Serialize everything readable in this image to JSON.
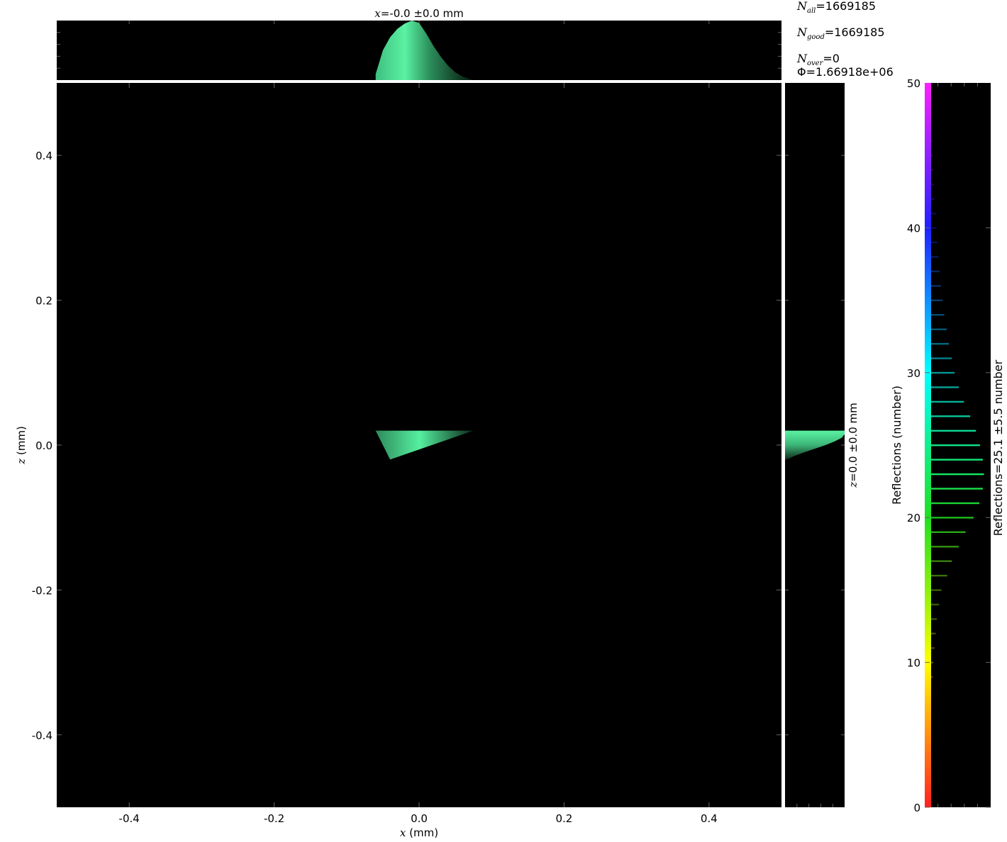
{
  "chart_data": {
    "type": "heatmap",
    "main": {
      "xlabel_var": "x",
      "xlabel_unit": "(mm)",
      "ylabel_var": "z",
      "ylabel_unit": "(mm)",
      "xlim": [
        -0.5,
        0.5
      ],
      "ylim": [
        -0.5,
        0.5
      ],
      "xticks": [
        -0.4,
        -0.2,
        0.0,
        0.2,
        0.4
      ],
      "yticks": [
        -0.4,
        -0.2,
        0.0,
        0.2,
        0.4
      ],
      "xtick_labels": [
        "-0.4",
        "-0.2",
        "0.0",
        "0.2",
        "0.4"
      ],
      "ytick_labels": [
        "-0.4",
        "-0.2",
        "0.0",
        "0.2",
        "0.4"
      ],
      "beam_polygon": [
        [
          -0.06,
          0.02
        ],
        [
          0.075,
          0.02
        ],
        [
          -0.04,
          -0.02
        ]
      ],
      "background": "#000000",
      "beam_color": "#4de393"
    },
    "top_histogram": {
      "title_var": "x",
      "title_rest": "=-0.0 ±0.0 mm",
      "x": [
        -0.06,
        -0.05,
        -0.04,
        -0.03,
        -0.02,
        -0.01,
        0.0,
        0.01,
        0.02,
        0.03,
        0.04,
        0.05,
        0.06,
        0.075
      ],
      "values": [
        0.1,
        0.5,
        0.72,
        0.86,
        0.95,
        1.0,
        0.96,
        0.78,
        0.57,
        0.39,
        0.24,
        0.13,
        0.06,
        0.0
      ]
    },
    "side_histogram": {
      "label_var": "z",
      "label_rest": "=0.0 ±0.0 mm",
      "z": [
        0.02,
        0.015,
        0.01,
        0.005,
        0.0,
        -0.005,
        -0.01,
        -0.015,
        -0.02
      ],
      "values": [
        1.0,
        1.0,
        0.95,
        0.83,
        0.68,
        0.5,
        0.32,
        0.16,
        0.03
      ]
    },
    "colorbar": {
      "label": "Reflections (number)",
      "lim": [
        0,
        50
      ],
      "ticks": [
        0,
        10,
        20,
        30,
        40
      ],
      "tick_labels": [
        "0",
        "10",
        "20",
        "30",
        "40"
      ],
      "top_label": "50",
      "stat_label": "Reflections=25.1 ±5.5 number",
      "bins_reflections": [
        9,
        10,
        11,
        12,
        13,
        14,
        15,
        16,
        17,
        18,
        19,
        20,
        21,
        22,
        23,
        24,
        25,
        26,
        27,
        28,
        29,
        30,
        31,
        32,
        33,
        34,
        35,
        36,
        37,
        38,
        39,
        40,
        41,
        42,
        43,
        44,
        45,
        46
      ],
      "bins_values": [
        0.03,
        0.04,
        0.06,
        0.08,
        0.1,
        0.14,
        0.18,
        0.28,
        0.36,
        0.48,
        0.6,
        0.74,
        0.84,
        0.9,
        0.92,
        0.9,
        0.85,
        0.78,
        0.68,
        0.57,
        0.48,
        0.41,
        0.36,
        0.31,
        0.27,
        0.23,
        0.2,
        0.17,
        0.15,
        0.13,
        0.11,
        0.09,
        0.08,
        0.06,
        0.05,
        0.04,
        0.03,
        0.02
      ]
    }
  },
  "stats": {
    "n_all_sym": "N",
    "n_all_sub": "all",
    "n_all_value": "=1669185",
    "n_good_sym": "N",
    "n_good_sub": "good",
    "n_good_value": "=1669185",
    "n_over_sym": "N",
    "n_over_sub": "over",
    "n_over_value": "=0",
    "flux": "Φ=1.66918e+06"
  }
}
